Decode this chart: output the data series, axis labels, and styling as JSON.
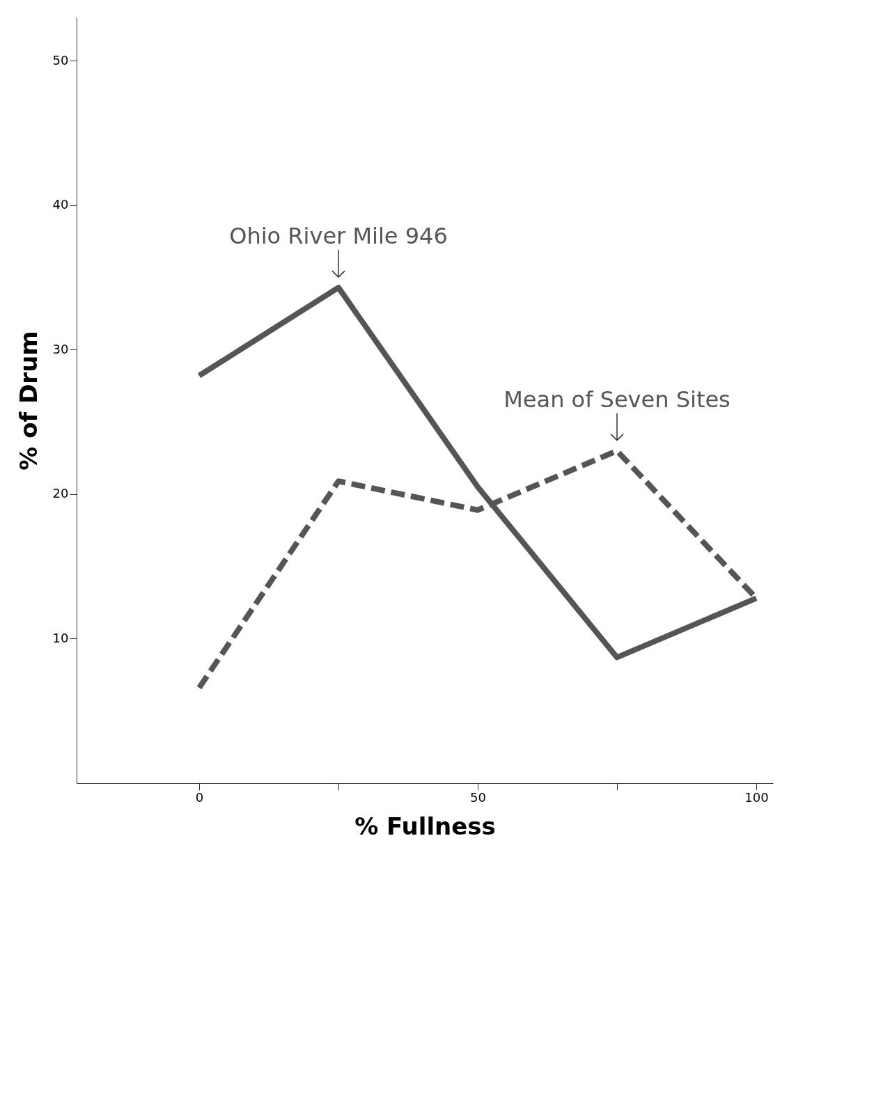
{
  "chart_data": {
    "type": "line",
    "xlabel": "% Fullness",
    "ylabel": "% of Drum",
    "x": [
      0,
      25,
      50,
      75,
      100
    ],
    "series": [
      {
        "name": "Ohio River Mile 946",
        "color": "#555555",
        "line_style": "solid",
        "values": [
          28.2,
          34.3,
          20.5,
          8.7,
          12.8
        ]
      },
      {
        "name": "Mean of Seven Sites",
        "color": "#555555",
        "line_style": "dashed",
        "values": [
          6.6,
          20.9,
          18.9,
          23.0,
          12.8
        ]
      }
    ],
    "xlim": [
      -22,
      103
    ],
    "xticks": [
      0,
      {
        "value": 25,
        "label": null
      },
      50,
      {
        "value": 75,
        "label": null
      },
      100
    ],
    "ylim": [
      0,
      53
    ],
    "yticks": [
      10,
      20,
      30,
      40,
      50
    ],
    "grid": false,
    "marker": "none"
  }
}
